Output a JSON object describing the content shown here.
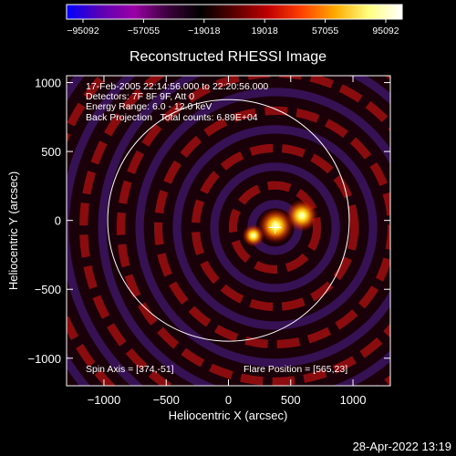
{
  "chart_data": {
    "type": "heatmap",
    "title": "Reconstructed RHESSI Image",
    "xlabel": "Heliocentric X (arcsec)",
    "ylabel": "Heliocentric Y (arcsec)",
    "xlim": [
      -1300,
      1300
    ],
    "ylim": [
      -1200,
      1050
    ],
    "x_ticks": [
      {
        "value": -1000,
        "label": "−1000"
      },
      {
        "value": -500,
        "label": "−500"
      },
      {
        "value": 0,
        "label": "0"
      },
      {
        "value": 500,
        "label": "500"
      },
      {
        "value": 1000,
        "label": "1000"
      }
    ],
    "y_ticks": [
      {
        "value": 1000,
        "label": "1000"
      },
      {
        "value": 500,
        "label": "500"
      },
      {
        "value": 0,
        "label": "0"
      },
      {
        "value": -500,
        "label": "−500"
      },
      {
        "value": -1000,
        "label": "−1000"
      }
    ],
    "colorbar": {
      "min": -95092,
      "max": 95092,
      "tick_labels": [
        "−95092",
        "−57055",
        "−19018",
        "19018",
        "57055",
        "95092"
      ],
      "colors": [
        "#0000ff",
        "#5a00b4",
        "#9a00a6",
        "#3c003c",
        "#000000",
        "#5a0000",
        "#c00000",
        "#ff4000",
        "#ffaa00",
        "#ffff80",
        "#ffffff"
      ]
    },
    "annotations": {
      "time_range": "17-Feb-2005 22:14:56.000 to 22:20:56.000",
      "detectors": "Detectors: 7F 8F 9F, Att 0",
      "energy_range": "Energy Range: 6.0 - 12.0 keV",
      "method": "Back Projection   Total counts: 6.89E+04",
      "spin_axis": "Spin Axis = [374,-51]",
      "flare_position": "Flare Position = [565,23]"
    },
    "sources": [
      {
        "x": 380,
        "y": -40,
        "strength": 1.0
      },
      {
        "x": 590,
        "y": 35,
        "strength": 0.9
      },
      {
        "x": 200,
        "y": -110,
        "strength": 0.55
      }
    ],
    "solar_limb_radius": 970,
    "spin_axis": [
      374,
      -51
    ],
    "ring_period": 150
  },
  "footer": {
    "timestamp": "28-Apr-2022 13:19"
  }
}
